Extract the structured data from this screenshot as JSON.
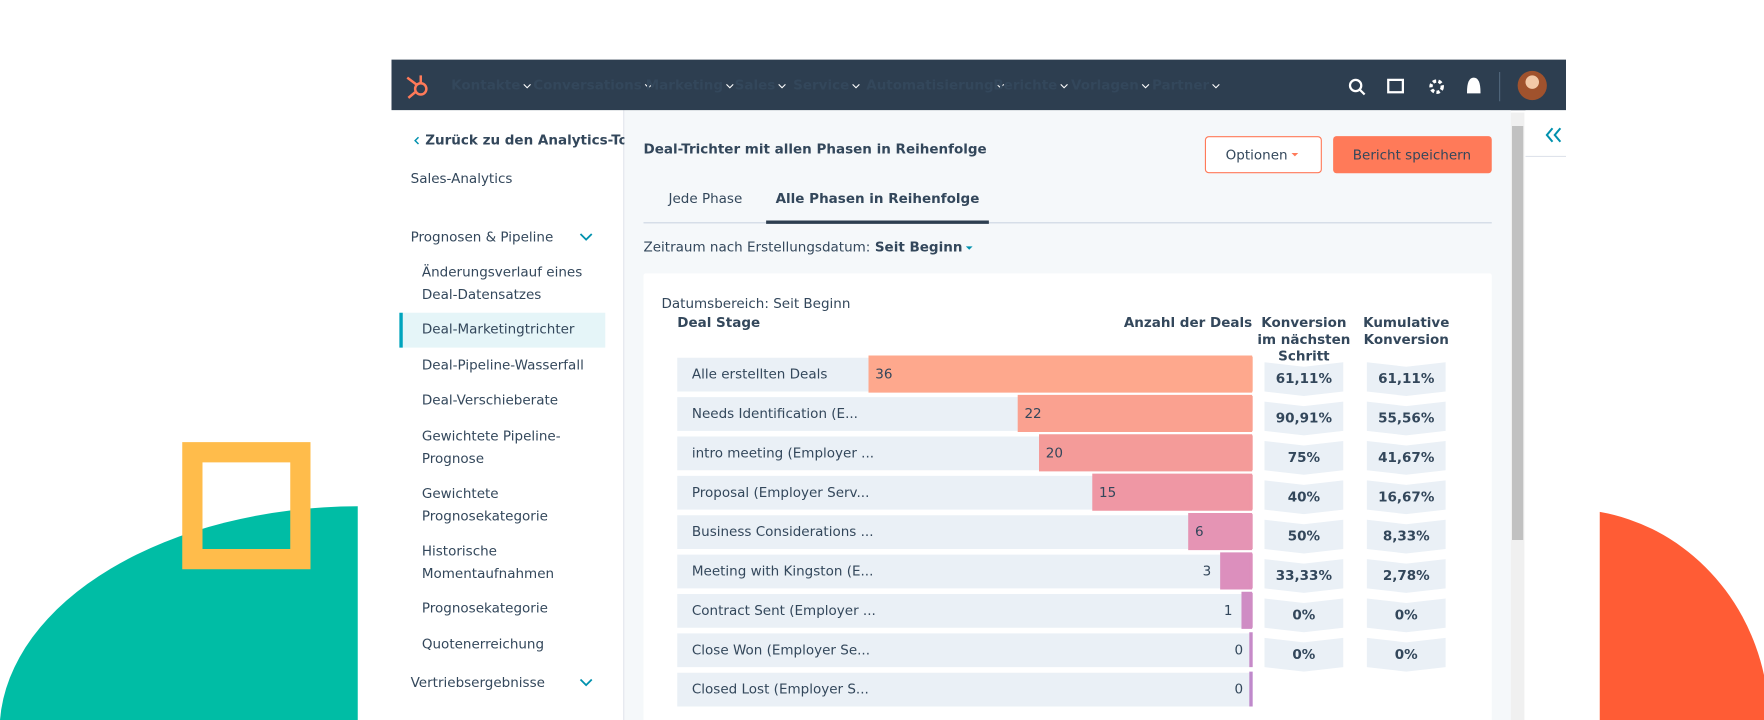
{
  "nav": {
    "items": [
      "Kontakte",
      "Conversations",
      "Marketing",
      "Sales",
      "Service",
      "Automatisierung",
      "Berichte",
      "Vorlagen",
      "Partner"
    ]
  },
  "sidebar": {
    "back_link": "Zurück zu den Analytics-Tools",
    "title": "Sales-Analytics",
    "sections": [
      {
        "label": "Prognosen & Pipeline",
        "items": [
          {
            "lines": [
              "Änderungsverlauf eines",
              "Deal-Datensatzes"
            ]
          },
          {
            "lines": [
              "Deal-Marketingtrichter"
            ]
          },
          {
            "lines": [
              "Deal-Pipeline-Wasserfall"
            ]
          },
          {
            "lines": [
              "Deal-Verschieberate"
            ]
          },
          {
            "lines": [
              "Gewichtete Pipeline-",
              "Prognose"
            ]
          },
          {
            "lines": [
              "Gewichtete",
              "Prognosekategorie"
            ]
          },
          {
            "lines": [
              "Historische",
              "Momentaufnahmen"
            ]
          },
          {
            "lines": [
              "Prognosekategorie"
            ]
          },
          {
            "lines": [
              "Quotenerreichung"
            ]
          }
        ]
      },
      {
        "label": "Vertriebsergebnisse",
        "items": []
      }
    ]
  },
  "report": {
    "title": "Deal-Trichter mit allen Phasen in Reihenfolge",
    "options_button": "Optionen",
    "save_button": "Bericht speichern",
    "tabs": [
      "Jede Phase",
      "Alle Phasen in Reihenfolge"
    ],
    "filter_label": "Zeitraum nach Erstellungsdatum:",
    "filter_value": "Seit Beginn"
  },
  "chart_data": {
    "type": "funnel",
    "subtitle": "Datumsbereich: Seit Beginn",
    "category_header": "Deal Stage",
    "value_header": "Anzahl der Deals",
    "conversion_header": [
      "Konversion",
      "im nächsten",
      "Schritt"
    ],
    "cumulative_header": [
      "Kumulative",
      "Konversion"
    ],
    "categories": [
      "Alle erstellten Deals",
      "Needs Identification (E...",
      "intro meeting (Employer ...",
      "Proposal (Employer Serv...",
      "Business Considerations ...",
      "Meeting with Kingston (E...",
      "Contract Sent (Employer ...",
      "Close Won (Employer Se...",
      "Closed Lost (Employer S..."
    ],
    "values": [
      36,
      22,
      20,
      15,
      6,
      3,
      1,
      0,
      0
    ],
    "colors": [
      "#fea88d",
      "#faa190",
      "#f49b99",
      "#ef97a4",
      "#e594b4",
      "#dc8fbd",
      "#cf8cc4",
      "#c68ac8",
      "#bf89cb"
    ],
    "xlim": [
      0,
      36
    ],
    "conversion": [
      "61,11%",
      "90,91%",
      "75%",
      "40%",
      "50%",
      "33,33%",
      "0%",
      "0%"
    ],
    "cumulative": [
      "61,11%",
      "55,56%",
      "41,67%",
      "16,67%",
      "8,33%",
      "2,78%",
      "0%",
      "0%"
    ]
  }
}
